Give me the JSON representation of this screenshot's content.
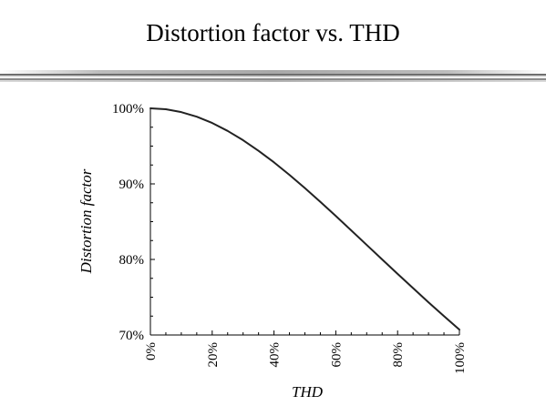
{
  "slide": {
    "title": "Distortion factor vs. THD"
  },
  "chart_data": {
    "type": "line",
    "title": "",
    "xlabel": "THD",
    "ylabel": "Distortion factor",
    "xlim": [
      0,
      100
    ],
    "ylim": [
      70,
      100
    ],
    "x_ticks": [
      {
        "value": 0,
        "label": "0%"
      },
      {
        "value": 20,
        "label": "20%"
      },
      {
        "value": 40,
        "label": "40%"
      },
      {
        "value": 60,
        "label": "60%"
      },
      {
        "value": 80,
        "label": "80%"
      },
      {
        "value": 100,
        "label": "100%"
      }
    ],
    "y_ticks": [
      {
        "value": 70,
        "label": "70%"
      },
      {
        "value": 80,
        "label": "80%"
      },
      {
        "value": 90,
        "label": "90%"
      },
      {
        "value": 100,
        "label": "100%"
      }
    ],
    "x_minor_step": 5,
    "y_minor_step": 2.5,
    "grid": false,
    "line_color": "#222222",
    "series": [
      {
        "x": [
          0,
          5,
          10,
          15,
          20,
          25,
          30,
          35,
          40,
          45,
          50,
          55,
          60,
          65,
          70,
          75,
          80,
          85,
          90,
          95,
          100
        ],
        "values": [
          100.0,
          99.88,
          99.5,
          98.89,
          98.06,
          97.01,
          95.78,
          94.37,
          92.85,
          91.19,
          89.44,
          87.62,
          85.75,
          83.84,
          81.92,
          80.0,
          78.09,
          76.2,
          74.32,
          72.5,
          70.71
        ]
      }
    ]
  }
}
